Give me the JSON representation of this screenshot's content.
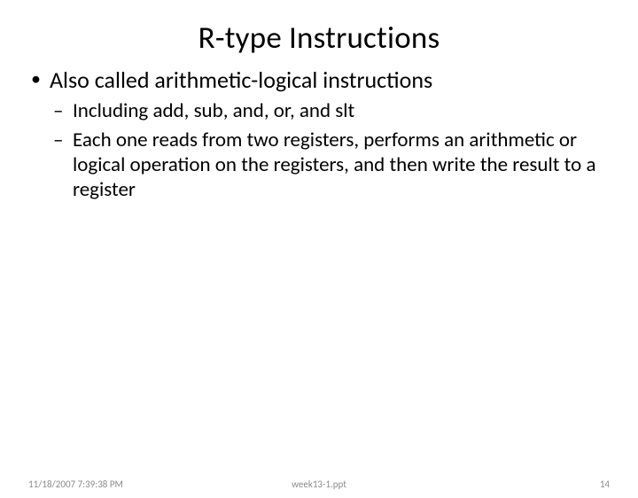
{
  "slide": {
    "title": "R-type Instructions",
    "title_fontsize": 35,
    "body_fontsize_lvl1": 26,
    "body_fontsize_lvl2": 23,
    "text_color": "#000000",
    "background_color": "#ffffff",
    "bullets": {
      "lvl1": {
        "text": "Also called arithmetic-logical instructions",
        "children": [
          {
            "text": "Including add, sub, and, or, and slt"
          },
          {
            "text": "Each one reads from two registers, performs an arithmetic or logical operation on the registers, and then write the result to a register"
          }
        ]
      }
    }
  },
  "footer": {
    "date": "11/18/2007 7:39:38 PM",
    "file": "week13-1.ppt",
    "page": "14",
    "fontsize": 11,
    "color": "#8b8b8b"
  }
}
